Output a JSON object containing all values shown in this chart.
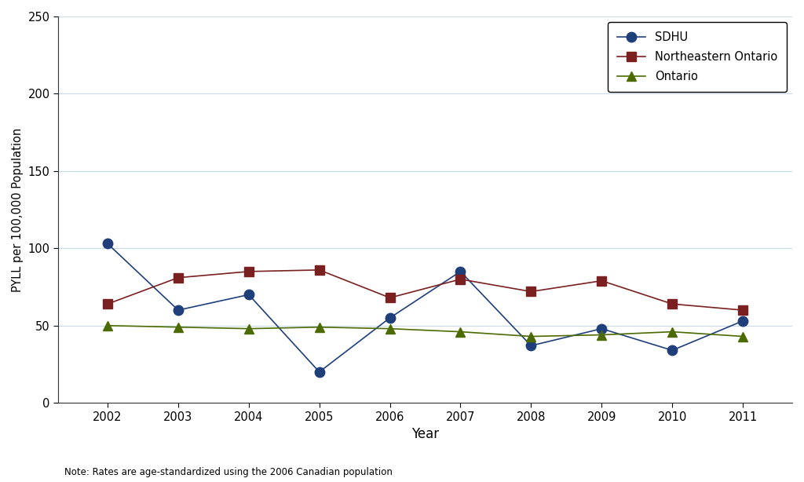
{
  "years": [
    2002,
    2003,
    2004,
    2005,
    2006,
    2007,
    2008,
    2009,
    2010,
    2011
  ],
  "sdhu": [
    103,
    60,
    70,
    20,
    55,
    85,
    37,
    48,
    34,
    53
  ],
  "northeastern_ontario": [
    64,
    81,
    85,
    86,
    68,
    80,
    72,
    79,
    64,
    60
  ],
  "ontario": [
    50,
    49,
    48,
    49,
    48,
    46,
    43,
    44,
    46,
    43
  ],
  "sdhu_color": "#1F3F7A",
  "ne_color": "#7B2020",
  "on_color": "#4B6B00",
  "xlabel": "Year",
  "ylabel": "PYLL per 100,000 Population",
  "ylim": [
    0,
    250
  ],
  "yticks": [
    0,
    50,
    100,
    150,
    200,
    250
  ],
  "note": "Note: Rates are age-standardized using the 2006 Canadian population",
  "legend_labels": [
    "SDHU",
    "Northeastern Ontario",
    "Ontario"
  ],
  "grid_color": "#C8DCE8",
  "background_color": "#FFFFFF"
}
